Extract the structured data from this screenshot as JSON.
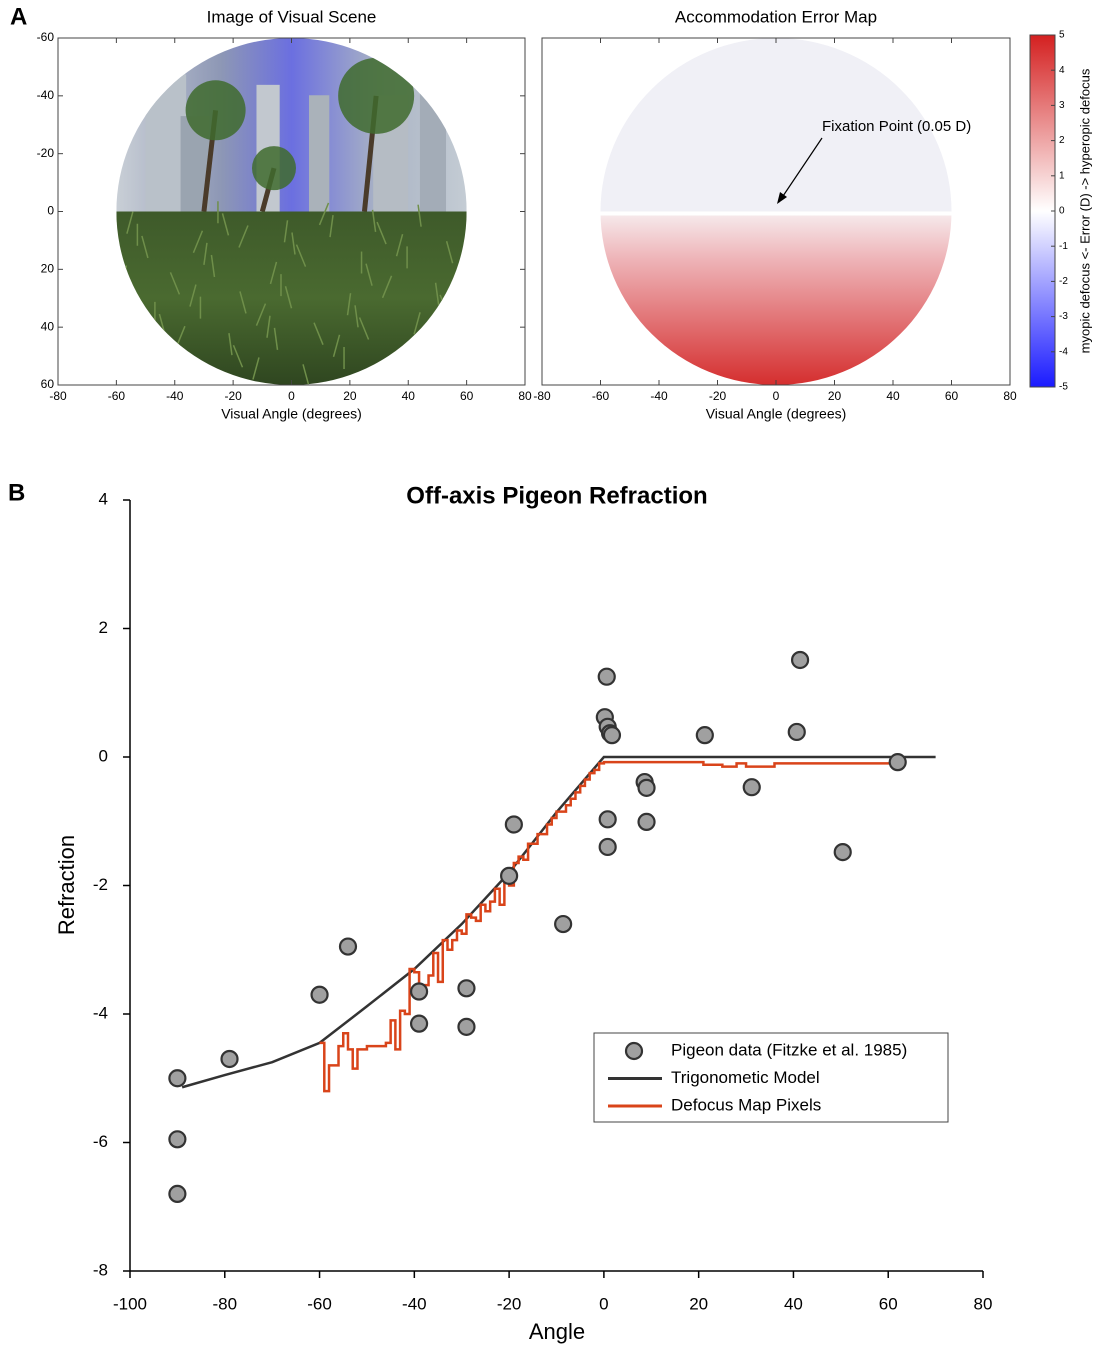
{
  "chart_data": [
    {
      "type": "image",
      "panel_label": "A",
      "title": "Image of Visual Scene",
      "x_label": "Visual Angle (degrees)",
      "xlim": [
        -80,
        80
      ],
      "xticks": [
        -80,
        -60,
        -40,
        -20,
        0,
        20,
        40,
        60,
        80
      ],
      "ylim": [
        -60,
        60
      ],
      "y_reversed": true,
      "yticks": [
        -60,
        -40,
        -20,
        0,
        20,
        40,
        60
      ]
    },
    {
      "type": "heatmap",
      "title": "Accommodation Error Map",
      "x_label": "Visual Angle (degrees)",
      "xlim": [
        -80,
        80
      ],
      "xticks": [
        -80,
        -60,
        -40,
        -20,
        0,
        20,
        40,
        60,
        80
      ],
      "ylim": [
        -60,
        60
      ],
      "y_reversed": true,
      "annotation": "Fixation Point (0.05 D)",
      "colorbar": {
        "label": "myopic defocus <- Error (D) -> hyperopic defocus",
        "lim": [
          -5,
          5
        ],
        "ticks": [
          -5,
          -4,
          -3,
          -2,
          -1,
          0,
          1,
          2,
          3,
          4,
          5
        ],
        "colors": [
          "#1a1aff",
          "#ffffff",
          "#d42020"
        ]
      }
    },
    {
      "type": "scatter-line",
      "panel_label": "B",
      "title": "Off-axis Pigeon Refraction",
      "x_label": "Angle",
      "y_label": "Refraction",
      "xlim": [
        -100,
        80
      ],
      "xticks": [
        -100,
        -80,
        -60,
        -40,
        -20,
        0,
        20,
        40,
        60,
        80
      ],
      "ylim": [
        -8,
        4
      ],
      "yticks": [
        -8,
        -6,
        -4,
        -2,
        0,
        2,
        4
      ],
      "legend_position": "lower right",
      "series": [
        {
          "name": "Pigeon data (Fitzke et al. 1985)",
          "kind": "scatter",
          "color": "#a0a0a0",
          "x": [
            -90,
            -90,
            -90,
            -79,
            -60,
            -54,
            -39,
            -39,
            -29,
            -29,
            -19,
            -20,
            -8.6,
            0.6,
            0.2,
            0.8,
            1.3,
            1.7,
            0.8,
            0.8,
            8.6,
            9,
            9,
            21.3,
            31.2,
            40.7,
            41.4,
            50.4,
            62
          ],
          "values": [
            -5.0,
            -5.95,
            -6.8,
            -4.7,
            -3.7,
            -2.95,
            -3.65,
            -4.15,
            -3.6,
            -4.2,
            -1.05,
            -1.85,
            -2.6,
            1.25,
            0.62,
            0.47,
            0.37,
            0.34,
            -0.97,
            -1.4,
            -0.39,
            -0.48,
            -1.01,
            0.34,
            -0.47,
            0.39,
            1.51,
            -1.48,
            -0.08
          ]
        },
        {
          "name": "Trigonometic Model",
          "kind": "line",
          "color": "#333333",
          "x": [
            -89,
            -80,
            -70,
            -60,
            -50,
            -40,
            -30,
            -20,
            -10,
            0,
            70
          ],
          "values": [
            -5.14,
            -4.95,
            -4.75,
            -4.45,
            -3.88,
            -3.3,
            -2.6,
            -1.8,
            -0.86,
            0,
            0
          ]
        },
        {
          "name": "Defocus Map Pixels",
          "kind": "step",
          "color": "#d9441a",
          "x": [
            -60,
            -59,
            -58,
            -57,
            -56,
            -55,
            -54,
            -53,
            -52,
            -50,
            -48,
            -46,
            -45,
            -44,
            -43,
            -42,
            -41,
            -40,
            -39,
            -38,
            -37,
            -36,
            -35,
            -34,
            -33,
            -32,
            -31,
            -30,
            -29,
            -28,
            -27,
            -26,
            -25,
            -24,
            -23,
            -22,
            -21,
            -20,
            -19,
            -18,
            -17,
            -16,
            -15,
            -14,
            -13,
            -12,
            -11,
            -10,
            -9,
            -8,
            -7,
            -6,
            -5,
            -4,
            -3,
            -2,
            -1,
            0,
            20,
            21,
            25,
            28,
            30,
            35,
            36,
            62
          ],
          "values": [
            -4.45,
            -5.2,
            -4.8,
            -4.8,
            -4.5,
            -4.3,
            -4.55,
            -4.85,
            -4.55,
            -4.5,
            -4.5,
            -4.45,
            -4.1,
            -4.55,
            -3.95,
            -4.0,
            -3.3,
            -3.35,
            -3.7,
            -3.55,
            -3.4,
            -3.05,
            -3.5,
            -2.85,
            -3.0,
            -2.85,
            -2.7,
            -2.75,
            -2.45,
            -2.5,
            -2.55,
            -2.3,
            -2.4,
            -2.25,
            -2.05,
            -2.3,
            -1.8,
            -2.0,
            -1.65,
            -1.55,
            -1.6,
            -1.35,
            -1.35,
            -1.2,
            -1.2,
            -1.05,
            -0.95,
            -0.85,
            -0.85,
            -0.75,
            -0.65,
            -0.55,
            -0.45,
            -0.35,
            -0.25,
            -0.2,
            -0.1,
            -0.08,
            -0.08,
            -0.12,
            -0.15,
            -0.1,
            -0.15,
            -0.15,
            -0.1,
            -0.1
          ]
        }
      ]
    }
  ]
}
